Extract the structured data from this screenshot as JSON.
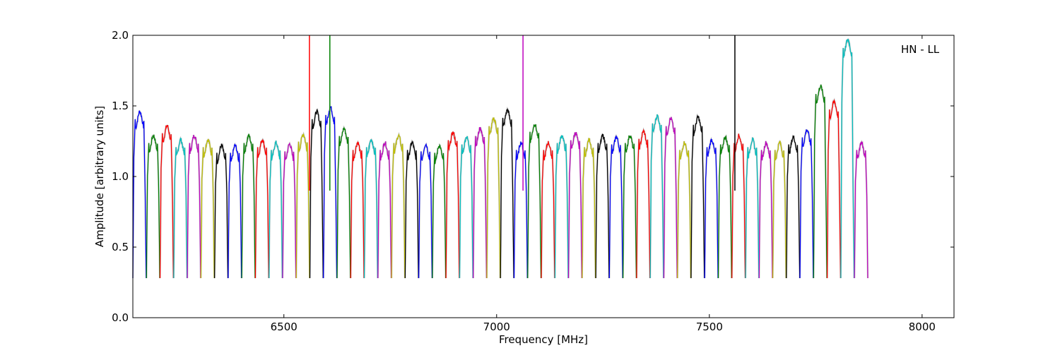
{
  "chart_data": {
    "type": "line",
    "title": "",
    "annotation": "HN - LL",
    "xlabel": "Frequency [MHz]",
    "ylabel": "Amplitude [arbitrary units]",
    "xlim": [
      6145,
      8075
    ],
    "ylim": [
      0.0,
      2.0
    ],
    "xticks": [
      6500,
      7000,
      7500,
      8000
    ],
    "xtick_labels": [
      "6500",
      "7000",
      "7500",
      "8000"
    ],
    "yticks": [
      0.0,
      0.5,
      1.0,
      1.5,
      2.0
    ],
    "ytick_labels": [
      "0.0",
      "0.5",
      "1.0",
      "1.5",
      "2.0"
    ],
    "grid": false,
    "legend": "none",
    "channel_width_mhz": 32,
    "start_mhz": 6145,
    "colors": [
      "#0000ff",
      "#008000",
      "#ff0000",
      "#00bfbf",
      "#bf00bf",
      "#bfbf00",
      "#000000"
    ],
    "channel_levels": [
      1.42,
      1.25,
      1.32,
      1.22,
      1.25,
      1.22,
      1.18,
      1.18,
      1.25,
      1.22,
      1.2,
      1.19,
      1.26,
      1.42,
      1.45,
      1.3,
      1.2,
      1.22,
      1.2,
      1.25,
      1.2,
      1.19,
      1.18,
      1.27,
      1.24,
      1.3,
      1.37,
      1.43,
      1.2,
      1.33,
      1.2,
      1.25,
      1.27,
      1.22,
      1.25,
      1.24,
      1.25,
      1.28,
      1.39,
      1.37,
      1.2,
      1.38,
      1.22,
      1.24,
      1.25,
      1.22,
      1.2,
      1.2,
      1.24,
      1.29,
      1.6,
      1.49,
      1.93,
      1.2
    ],
    "background_color": "#bebebe",
    "spikes": [
      {
        "x": 6560,
        "color": "#ff0000"
      },
      {
        "x": 6608,
        "color": "#008000"
      },
      {
        "x": 7062,
        "color": "#bf00bf"
      },
      {
        "x": 7560,
        "color": "#000000"
      }
    ]
  }
}
